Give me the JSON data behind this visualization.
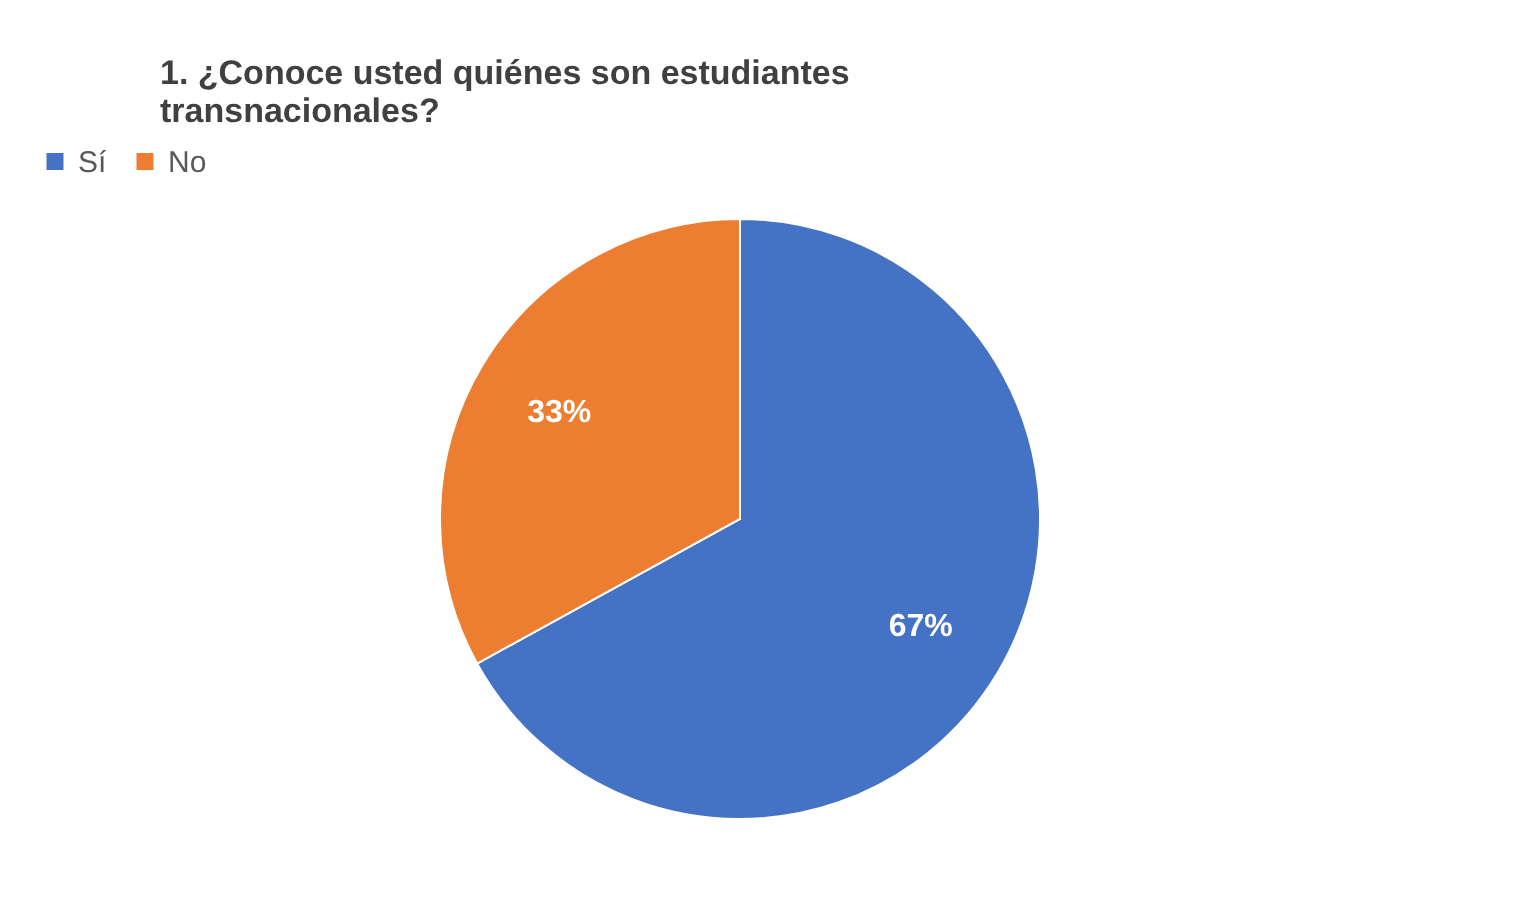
{
  "chart_data": {
    "type": "pie",
    "title": "1. ¿Conoce usted quiénes son estudiantes transnacionales?",
    "categories": [
      "Sí",
      "No"
    ],
    "values": [
      67,
      33
    ],
    "colors": [
      "#4472c4",
      "#ed7d31"
    ],
    "value_labels": [
      "67%",
      "33%"
    ],
    "legend": "top"
  }
}
